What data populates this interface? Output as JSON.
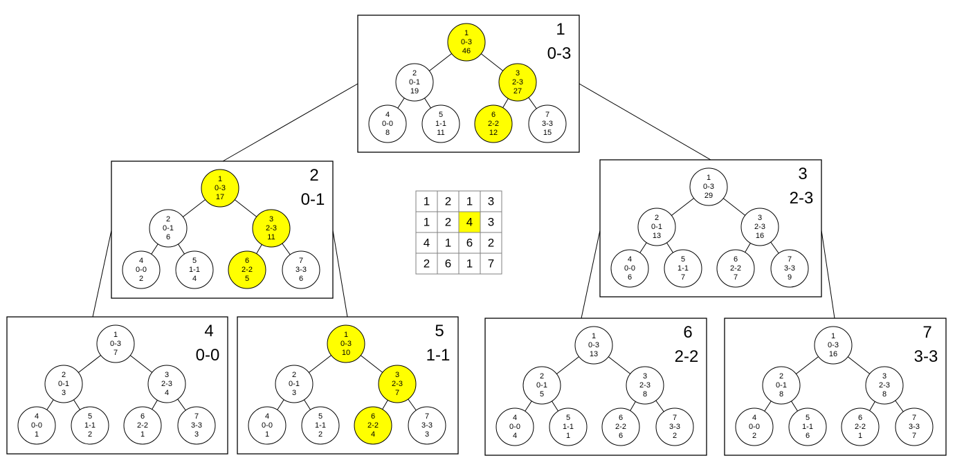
{
  "highlight_color": "#ffff00",
  "node_fill": "#ffffff",
  "matrix": [
    [
      "1",
      "2",
      "1",
      "3"
    ],
    [
      "1",
      "2",
      "4",
      "3"
    ],
    [
      "4",
      "1",
      "6",
      "2"
    ],
    [
      "2",
      "6",
      "1",
      "7"
    ]
  ],
  "matrix_highlight": [
    1,
    2
  ],
  "trees": [
    {
      "id": "1",
      "range": "0-3",
      "nodes": [
        {
          "index": "1",
          "range": "0-3",
          "value": "46",
          "highlight": true
        },
        {
          "index": "2",
          "range": "0-1",
          "value": "19",
          "highlight": false
        },
        {
          "index": "3",
          "range": "2-3",
          "value": "27",
          "highlight": true
        },
        {
          "index": "4",
          "range": "0-0",
          "value": "8",
          "highlight": false
        },
        {
          "index": "5",
          "range": "1-1",
          "value": "11",
          "highlight": false
        },
        {
          "index": "6",
          "range": "2-2",
          "value": "12",
          "highlight": true
        },
        {
          "index": "7",
          "range": "3-3",
          "value": "15",
          "highlight": false
        }
      ]
    },
    {
      "id": "2",
      "range": "0-1",
      "nodes": [
        {
          "index": "1",
          "range": "0-3",
          "value": "17",
          "highlight": true
        },
        {
          "index": "2",
          "range": "0-1",
          "value": "6",
          "highlight": false
        },
        {
          "index": "3",
          "range": "2-3",
          "value": "11",
          "highlight": true
        },
        {
          "index": "4",
          "range": "0-0",
          "value": "2",
          "highlight": false
        },
        {
          "index": "5",
          "range": "1-1",
          "value": "4",
          "highlight": false
        },
        {
          "index": "6",
          "range": "2-2",
          "value": "5",
          "highlight": true
        },
        {
          "index": "7",
          "range": "3-3",
          "value": "6",
          "highlight": false
        }
      ]
    },
    {
      "id": "3",
      "range": "2-3",
      "nodes": [
        {
          "index": "1",
          "range": "0-3",
          "value": "29",
          "highlight": false
        },
        {
          "index": "2",
          "range": "0-1",
          "value": "13",
          "highlight": false
        },
        {
          "index": "3",
          "range": "2-3",
          "value": "16",
          "highlight": false
        },
        {
          "index": "4",
          "range": "0-0",
          "value": "6",
          "highlight": false
        },
        {
          "index": "5",
          "range": "1-1",
          "value": "7",
          "highlight": false
        },
        {
          "index": "6",
          "range": "2-2",
          "value": "7",
          "highlight": false
        },
        {
          "index": "7",
          "range": "3-3",
          "value": "9",
          "highlight": false
        }
      ]
    },
    {
      "id": "4",
      "range": "0-0",
      "nodes": [
        {
          "index": "1",
          "range": "0-3",
          "value": "7",
          "highlight": false
        },
        {
          "index": "2",
          "range": "0-1",
          "value": "3",
          "highlight": false
        },
        {
          "index": "3",
          "range": "2-3",
          "value": "4",
          "highlight": false
        },
        {
          "index": "4",
          "range": "0-0",
          "value": "1",
          "highlight": false
        },
        {
          "index": "5",
          "range": "1-1",
          "value": "2",
          "highlight": false
        },
        {
          "index": "6",
          "range": "2-2",
          "value": "1",
          "highlight": false
        },
        {
          "index": "7",
          "range": "3-3",
          "value": "3",
          "highlight": false
        }
      ]
    },
    {
      "id": "5",
      "range": "1-1",
      "nodes": [
        {
          "index": "1",
          "range": "0-3",
          "value": "10",
          "highlight": true
        },
        {
          "index": "2",
          "range": "0-1",
          "value": "3",
          "highlight": false
        },
        {
          "index": "3",
          "range": "2-3",
          "value": "7",
          "highlight": true
        },
        {
          "index": "4",
          "range": "0-0",
          "value": "1",
          "highlight": false
        },
        {
          "index": "5",
          "range": "1-1",
          "value": "2",
          "highlight": false
        },
        {
          "index": "6",
          "range": "2-2",
          "value": "4",
          "highlight": true
        },
        {
          "index": "7",
          "range": "3-3",
          "value": "3",
          "highlight": false
        }
      ]
    },
    {
      "id": "6",
      "range": "2-2",
      "nodes": [
        {
          "index": "1",
          "range": "0-3",
          "value": "13",
          "highlight": false
        },
        {
          "index": "2",
          "range": "0-1",
          "value": "5",
          "highlight": false
        },
        {
          "index": "3",
          "range": "2-3",
          "value": "8",
          "highlight": false
        },
        {
          "index": "4",
          "range": "0-0",
          "value": "4",
          "highlight": false
        },
        {
          "index": "5",
          "range": "1-1",
          "value": "1",
          "highlight": false
        },
        {
          "index": "6",
          "range": "2-2",
          "value": "6",
          "highlight": false
        },
        {
          "index": "7",
          "range": "3-3",
          "value": "2",
          "highlight": false
        }
      ]
    },
    {
      "id": "7",
      "range": "3-3",
      "nodes": [
        {
          "index": "1",
          "range": "0-3",
          "value": "16",
          "highlight": false
        },
        {
          "index": "2",
          "range": "0-1",
          "value": "8",
          "highlight": false
        },
        {
          "index": "3",
          "range": "2-3",
          "value": "8",
          "highlight": false
        },
        {
          "index": "4",
          "range": "0-0",
          "value": "2",
          "highlight": false
        },
        {
          "index": "5",
          "range": "1-1",
          "value": "6",
          "highlight": false
        },
        {
          "index": "6",
          "range": "2-2",
          "value": "1",
          "highlight": false
        },
        {
          "index": "7",
          "range": "3-3",
          "value": "7",
          "highlight": false
        }
      ]
    }
  ]
}
